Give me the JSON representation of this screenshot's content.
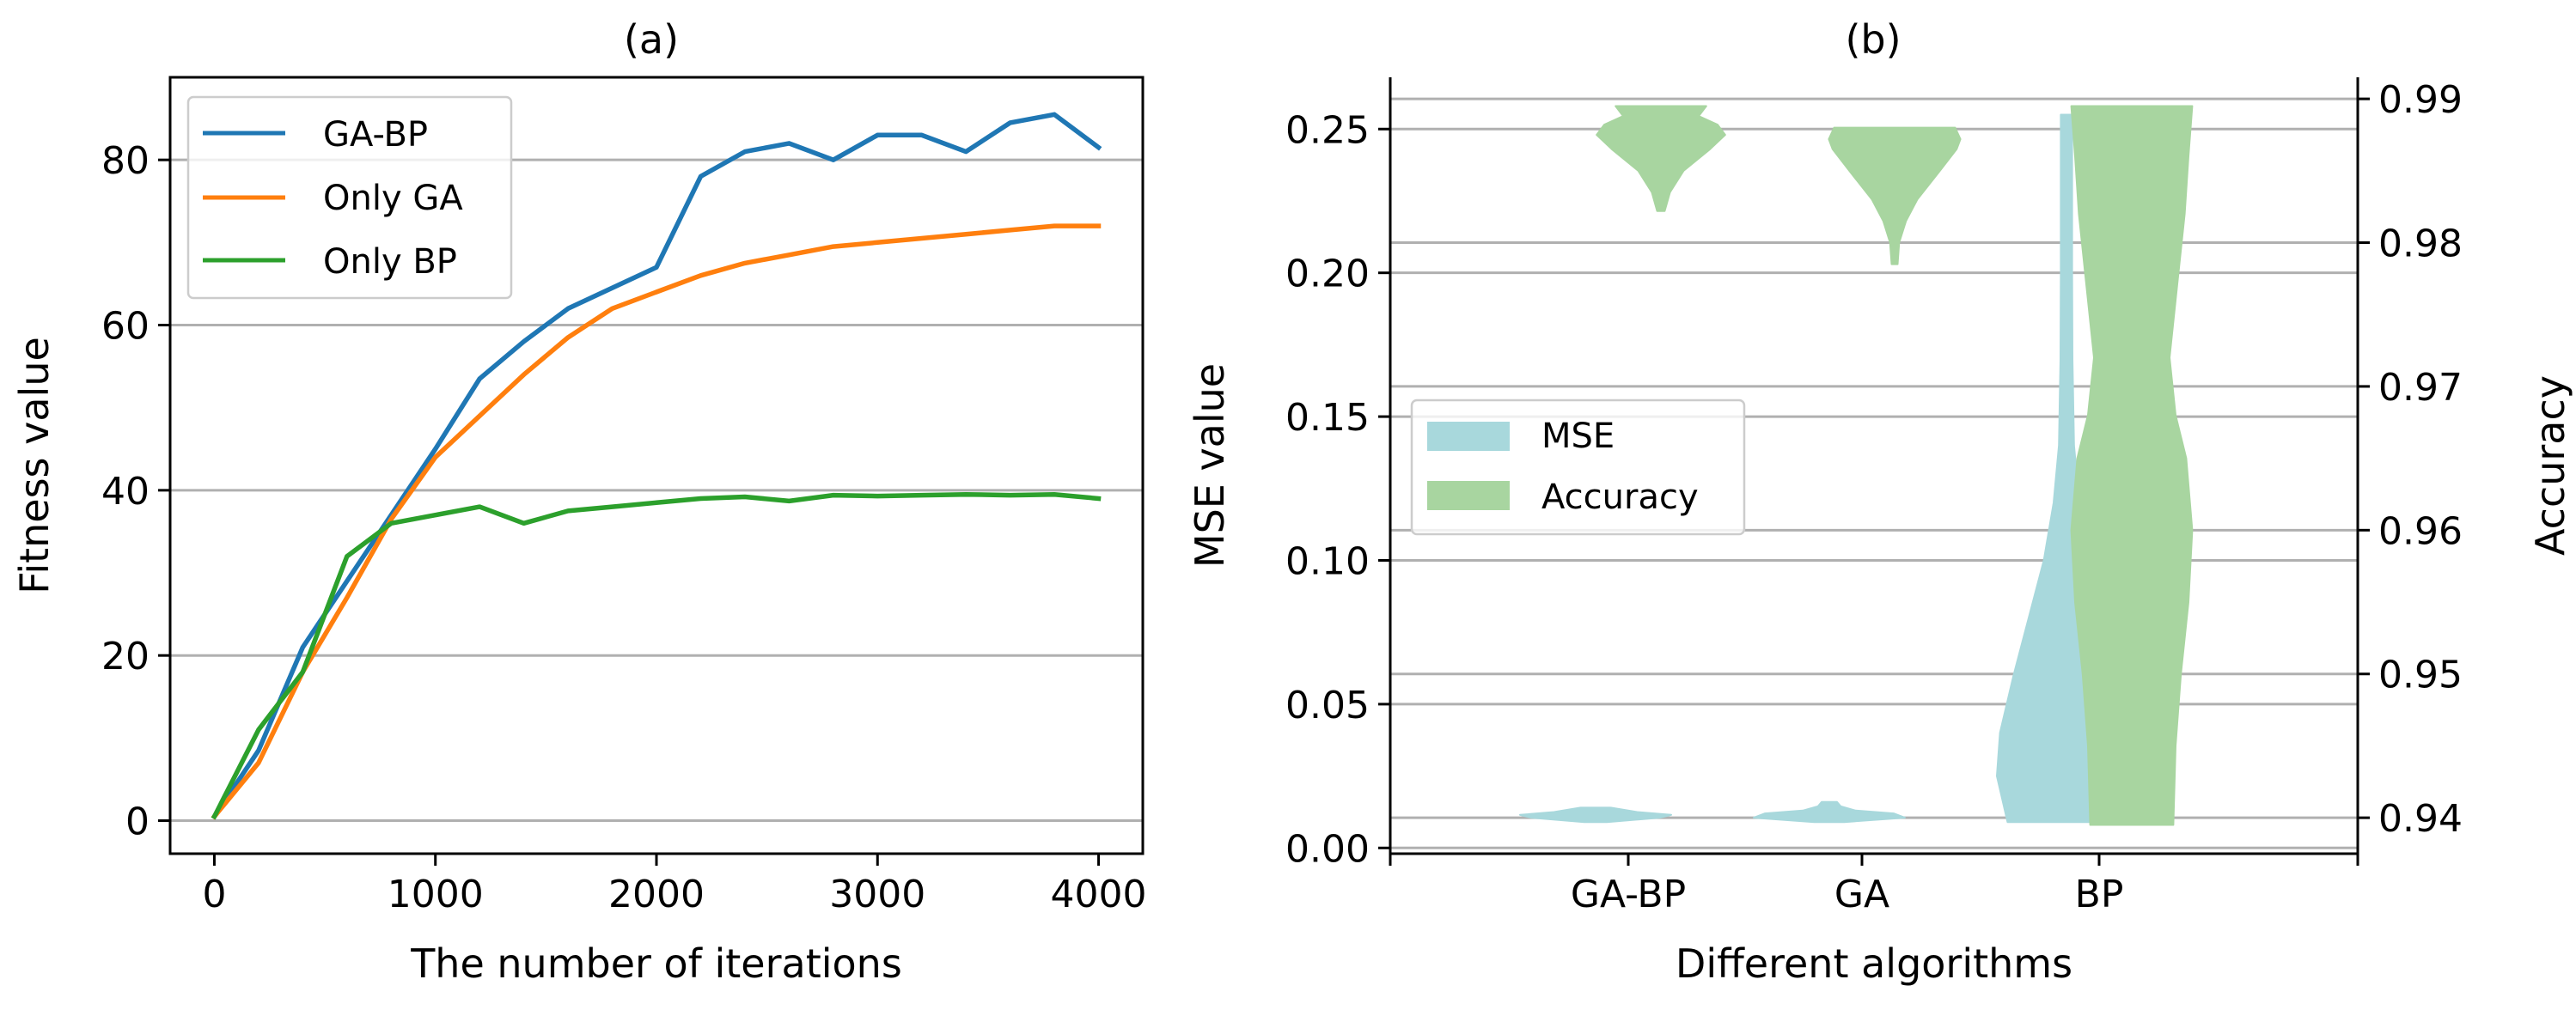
{
  "chart_data": [
    {
      "type": "line",
      "panel": "(a)",
      "title": "(a)",
      "xlabel": "The number of iterations",
      "ylabel": "Fitness value",
      "xlim": [
        -200,
        4200
      ],
      "ylim": [
        -4,
        90
      ],
      "xticks": [
        0,
        1000,
        2000,
        3000,
        4000
      ],
      "yticks": [
        0,
        20,
        40,
        60,
        80
      ],
      "grid": "horizontal",
      "legend_position": "top-left",
      "x": [
        0,
        200,
        400,
        600,
        800,
        1000,
        1200,
        1400,
        1600,
        1800,
        2000,
        2200,
        2400,
        2600,
        2800,
        3000,
        3200,
        3400,
        3600,
        3800,
        4000
      ],
      "series": [
        {
          "name": "GA-BP",
          "color": "#1f77b4",
          "values": [
            0.5,
            8.5,
            21,
            29,
            37,
            45,
            53.5,
            58,
            62,
            64.5,
            67,
            78,
            81,
            82,
            80,
            83,
            83,
            81,
            84.5,
            85.5,
            81.5
          ]
        },
        {
          "name": "Only GA",
          "color": "#ff7f0e",
          "values": [
            0.5,
            7,
            18,
            27,
            36.5,
            44,
            49,
            54,
            58.5,
            62,
            64,
            66,
            67.5,
            68.5,
            69.5,
            70,
            70.5,
            71,
            71.5,
            72,
            72
          ]
        },
        {
          "name": "Only BP",
          "color": "#2ca02c",
          "values": [
            0.5,
            11,
            18,
            32,
            36,
            37,
            38,
            36,
            37.5,
            38,
            38.5,
            39,
            39.2,
            38.7,
            39.4,
            39.3,
            39.4,
            39.5,
            39.4,
            39.5,
            39
          ]
        }
      ]
    },
    {
      "type": "violin",
      "panel": "(b)",
      "title": "(b)",
      "xlabel": "Different algorithms",
      "ylabel": "MSE value",
      "ylabel_right": "Accuracy",
      "categories": [
        "GA-BP",
        "GA",
        "BP"
      ],
      "ylim": [
        -0.002,
        0.268
      ],
      "ylim_right": [
        0.9375,
        0.9915
      ],
      "yticks": [
        "0.00",
        "0.05",
        "0.10",
        "0.15",
        "0.20",
        "0.25"
      ],
      "yticks_right": [
        "0.94",
        "0.95",
        "0.96",
        "0.97",
        "0.98",
        "0.99"
      ],
      "grid": "horizontal",
      "legend_position": "center-left",
      "series": [
        {
          "name": "MSE",
          "axis": "left",
          "color": "#a8d8dc",
          "distributions": [
            {
              "category": "GA-BP",
              "min": 0.009,
              "max": 0.014,
              "profile": [
                [
                  0.009,
                  0.15
                ],
                [
                  0.0105,
                  0.85
                ],
                [
                  0.0115,
                  1.0
                ],
                [
                  0.0125,
                  0.55
                ],
                [
                  0.014,
                  0.2
                ]
              ]
            },
            {
              "category": "GA",
              "min": 0.009,
              "max": 0.016,
              "profile": [
                [
                  0.009,
                  0.2
                ],
                [
                  0.0105,
                  1.0
                ],
                [
                  0.012,
                  0.85
                ],
                [
                  0.013,
                  0.35
                ],
                [
                  0.0145,
                  0.15
                ],
                [
                  0.016,
                  0.1
                ]
              ]
            },
            {
              "category": "BP",
              "min": 0.009,
              "max": 0.255,
              "profile": [
                [
                  0.009,
                  0.78
                ],
                [
                  0.025,
                  0.92
                ],
                [
                  0.04,
                  0.88
                ],
                [
                  0.06,
                  0.7
                ],
                [
                  0.08,
                  0.5
                ],
                [
                  0.1,
                  0.3
                ],
                [
                  0.12,
                  0.17
                ],
                [
                  0.14,
                  0.1
                ],
                [
                  0.17,
                  0.08
                ],
                [
                  0.2,
                  0.075
                ],
                [
                  0.23,
                  0.075
                ],
                [
                  0.255,
                  0.075
                ]
              ]
            }
          ]
        },
        {
          "name": "Accuracy",
          "axis": "right",
          "color": "#a8d5a0",
          "distributions": [
            {
              "category": "GA-BP",
              "min": 0.9822,
              "max": 0.9895,
              "profile": [
                [
                  0.9822,
                  0.05
                ],
                [
                  0.9835,
                  0.12
                ],
                [
                  0.985,
                  0.3
                ],
                [
                  0.9865,
                  0.65
                ],
                [
                  0.9875,
                  0.85
                ],
                [
                  0.9882,
                  0.75
                ],
                [
                  0.9888,
                  0.5
                ],
                [
                  0.9895,
                  0.6
                ]
              ]
            },
            {
              "category": "GA",
              "min": 0.9785,
              "max": 0.988,
              "profile": [
                [
                  0.9785,
                  0.04
                ],
                [
                  0.98,
                  0.06
                ],
                [
                  0.9815,
                  0.15
                ],
                [
                  0.983,
                  0.3
                ],
                [
                  0.985,
                  0.6
                ],
                [
                  0.9865,
                  0.82
                ],
                [
                  0.9872,
                  0.87
                ],
                [
                  0.988,
                  0.8
                ]
              ]
            },
            {
              "category": "BP",
              "min": 0.9395,
              "max": 0.9895,
              "profile": [
                [
                  0.9395,
                  0.55
                ],
                [
                  0.945,
                  0.58
                ],
                [
                  0.95,
                  0.65
                ],
                [
                  0.955,
                  0.75
                ],
                [
                  0.96,
                  0.8
                ],
                [
                  0.965,
                  0.72
                ],
                [
                  0.968,
                  0.58
                ],
                [
                  0.972,
                  0.5
                ],
                [
                  0.977,
                  0.6
                ],
                [
                  0.982,
                  0.7
                ],
                [
                  0.986,
                  0.75
                ],
                [
                  0.9895,
                  0.8
                ]
              ]
            }
          ]
        }
      ]
    }
  ]
}
